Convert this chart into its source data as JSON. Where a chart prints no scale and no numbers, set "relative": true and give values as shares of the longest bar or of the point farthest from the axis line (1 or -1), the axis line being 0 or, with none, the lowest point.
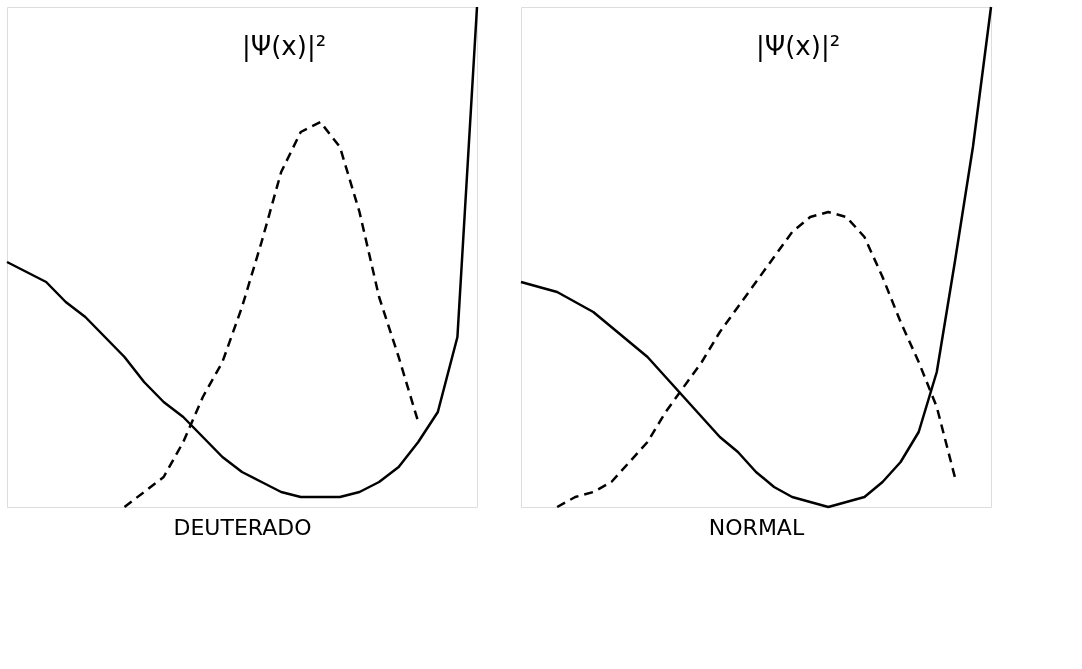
{
  "chart_data": [
    {
      "type": "line",
      "relative": true,
      "xlabel": "DEUTERADO",
      "annotations": [
        "|Ψ(x)|²"
      ],
      "categories": [
        null,
        null,
        null,
        null,
        null,
        null,
        null,
        null,
        null,
        null,
        null,
        null,
        null,
        null,
        null,
        null,
        null,
        null,
        null,
        null,
        null,
        null,
        null,
        null,
        null
      ],
      "series": [
        {
          "color": "#000000",
          "line_style": "solid",
          "values": [
            0.49,
            0.47,
            0.45,
            0.41,
            0.38,
            0.34,
            0.3,
            0.25,
            0.21,
            0.18,
            0.14,
            0.1,
            0.07,
            0.05,
            0.03,
            0.02,
            0.02,
            0.02,
            0.03,
            0.05,
            0.08,
            0.13,
            0.19,
            0.34,
            1.0
          ]
        },
        {
          "color": "#000000",
          "line_style": "dashed",
          "values": [
            null,
            null,
            null,
            null,
            null,
            null,
            0,
            0.03,
            0.06,
            0.13,
            0.22,
            0.29,
            0.4,
            0.53,
            0.67,
            0.75,
            0.77,
            0.72,
            0.59,
            0.42,
            0.3,
            0.17,
            null,
            null,
            null
          ]
        }
      ]
    },
    {
      "type": "line",
      "relative": true,
      "xlabel": "NORMAL",
      "annotations": [
        "|Ψ(x)|²"
      ],
      "categories": [
        null,
        null,
        null,
        null,
        null,
        null,
        null,
        null,
        null,
        null,
        null,
        null,
        null,
        null,
        null,
        null,
        null,
        null,
        null,
        null,
        null,
        null,
        null,
        null,
        null,
        null,
        null
      ],
      "series": [
        {
          "color": "#000000",
          "line_style": "solid",
          "values": [
            0.45,
            0.44,
            0.43,
            0.41,
            0.39,
            0.36,
            0.33,
            0.3,
            0.26,
            0.22,
            0.18,
            0.14,
            0.11,
            0.07,
            0.04,
            0.02,
            0.01,
            0,
            0.01,
            0.02,
            0.05,
            0.09,
            0.15,
            0.27,
            0.49,
            0.72,
            1.0
          ]
        },
        {
          "color": "#000000",
          "line_style": "dashed",
          "values": [
            null,
            null,
            0,
            0.02,
            0.03,
            0.05,
            0.09,
            0.13,
            0.19,
            0.24,
            0.29,
            0.35,
            0.4,
            0.45,
            0.5,
            0.55,
            0.58,
            0.59,
            0.58,
            0.54,
            0.46,
            0.37,
            0.29,
            0.2,
            0.06,
            null,
            null
          ]
        }
      ]
    }
  ]
}
